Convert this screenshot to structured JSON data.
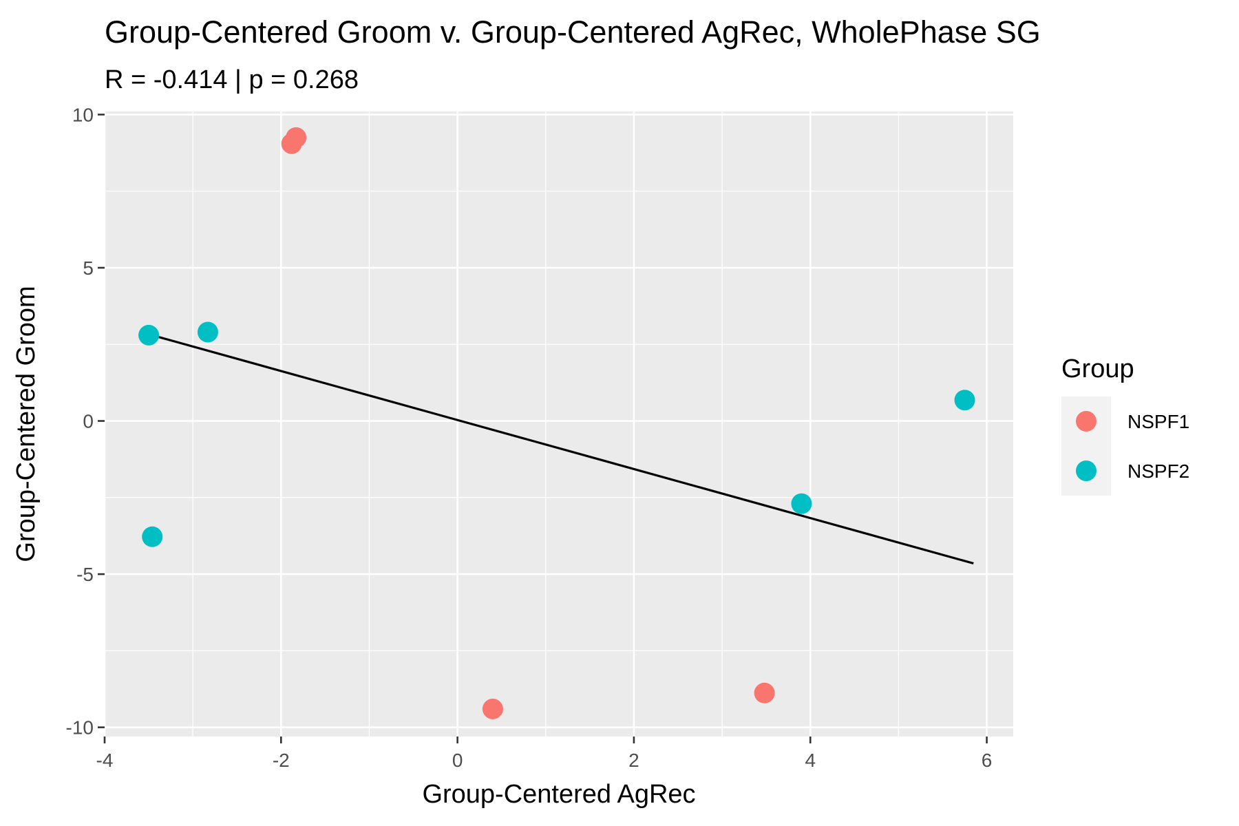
{
  "chart_data": {
    "type": "scatter",
    "title": "Group-Centered Groom v. Group-Centered AgRec, WholePhase SG",
    "subtitle": "R = -0.414 | p = 0.268",
    "xlabel": "Group-Centered AgRec",
    "ylabel": "Group-Centered Groom",
    "xlim": [
      -4,
      6.3
    ],
    "ylim": [
      -10.3,
      10.1
    ],
    "x_ticks": [
      -4,
      -2,
      0,
      2,
      4,
      6
    ],
    "x_tick_labels": [
      "-4",
      "-2",
      "0",
      "2",
      "4",
      "6"
    ],
    "y_ticks": [
      10,
      5,
      0,
      -5,
      -10
    ],
    "y_tick_labels": [
      "10",
      "5",
      "0",
      "-5",
      "-10"
    ],
    "grid": true,
    "legend_title": "Group",
    "legend_placement": "right",
    "series": [
      {
        "name": "NSPF1",
        "color": "#F8766D",
        "points": [
          {
            "x": -1.88,
            "y": 9.05
          },
          {
            "x": -1.83,
            "y": 9.25
          },
          {
            "x": 0.4,
            "y": -9.4
          },
          {
            "x": 3.48,
            "y": -8.88
          }
        ]
      },
      {
        "name": "NSPF2",
        "color": "#00BFC4",
        "points": [
          {
            "x": -3.5,
            "y": 2.8
          },
          {
            "x": -2.83,
            "y": 2.9
          },
          {
            "x": -3.46,
            "y": -3.78
          },
          {
            "x": 3.9,
            "y": -2.7
          },
          {
            "x": 5.75,
            "y": 0.68
          }
        ]
      }
    ],
    "fit_line": {
      "x": [
        -3.4,
        5.85
      ],
      "y": [
        2.75,
        -4.65
      ],
      "color": "#000000"
    }
  }
}
